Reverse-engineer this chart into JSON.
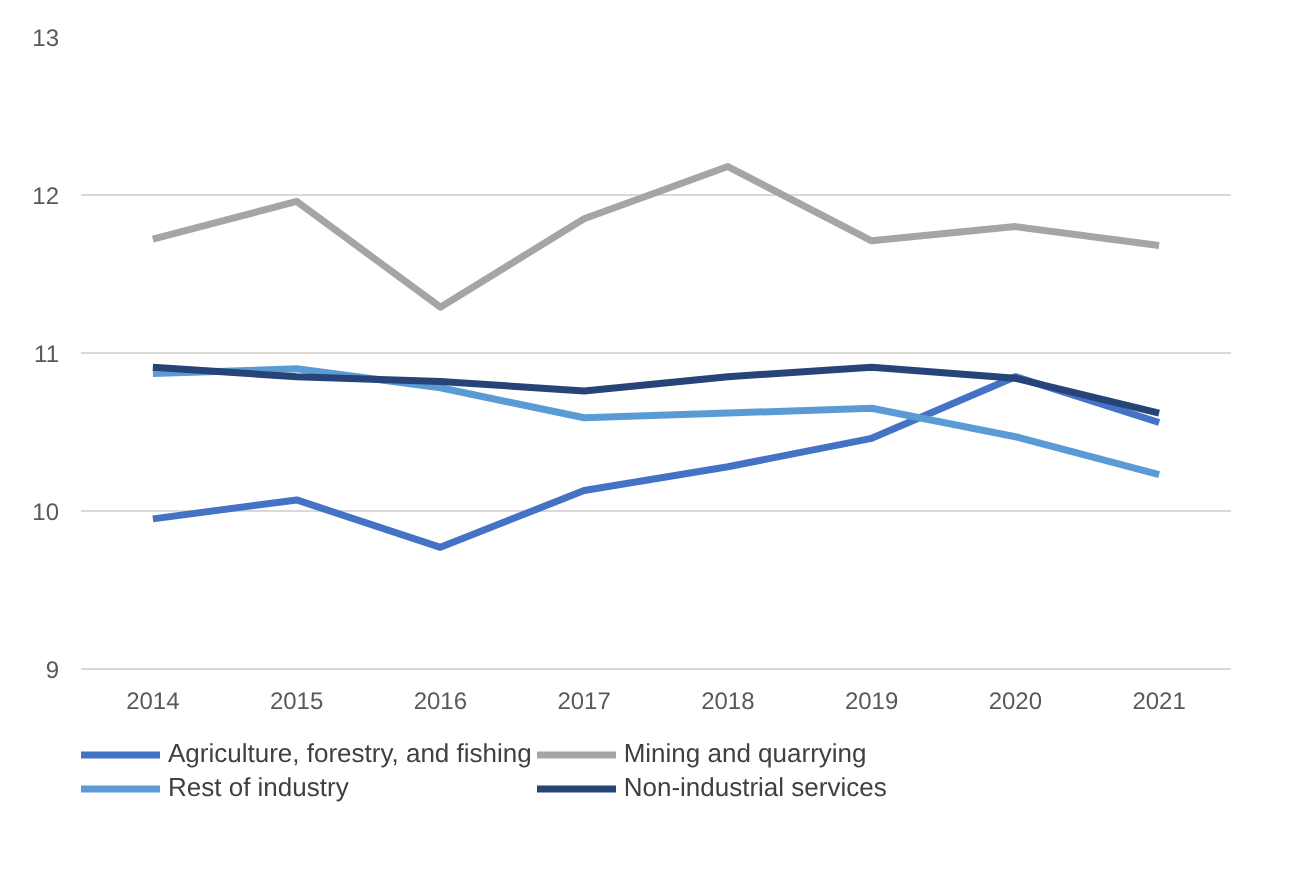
{
  "chart_data": {
    "type": "line",
    "categories": [
      "2014",
      "2015",
      "2016",
      "2017",
      "2018",
      "2019",
      "2020",
      "2021"
    ],
    "ylim": [
      9,
      13
    ],
    "yticks": [
      9,
      10,
      11,
      12,
      13
    ],
    "grid": "y",
    "legend": "bottom",
    "line_style": "solid",
    "series": [
      {
        "name": "Agriculture, forestry, and fishing",
        "color": "#4472c4",
        "values": [
          9.95,
          10.07,
          9.77,
          10.13,
          10.28,
          10.46,
          10.85,
          10.56
        ]
      },
      {
        "name": "Mining and quarrying",
        "color": "#a5a5a5",
        "values": [
          11.72,
          11.96,
          11.29,
          11.85,
          12.18,
          11.71,
          11.8,
          11.68
        ]
      },
      {
        "name": "Rest of industry",
        "color": "#5b9bd5",
        "values": [
          10.87,
          10.9,
          10.78,
          10.59,
          10.62,
          10.65,
          10.47,
          10.23
        ]
      },
      {
        "name": "Non-industrial services",
        "color": "#264478",
        "values": [
          10.91,
          10.85,
          10.82,
          10.76,
          10.85,
          10.91,
          10.84,
          10.62
        ]
      }
    ]
  }
}
